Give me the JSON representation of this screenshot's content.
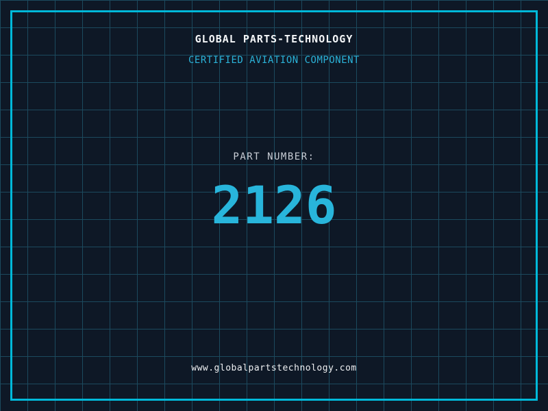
{
  "colors": {
    "background": "#0e1826",
    "grid_line": "#1c4a5e",
    "frame": "#00b9d9",
    "title": "#f4f6f8",
    "accent_cyan": "#2bb3d9",
    "part_label": "#c9ced6",
    "part_number": "#28b5db",
    "url_text": "#eef0f2"
  },
  "header": {
    "title": "GLOBAL PARTS-TECHNOLOGY",
    "subtitle": "CERTIFIED AVIATION COMPONENT"
  },
  "part": {
    "label": "PART NUMBER:",
    "number": "2126"
  },
  "footer": {
    "url": "www.globalpartstechnology.com"
  }
}
